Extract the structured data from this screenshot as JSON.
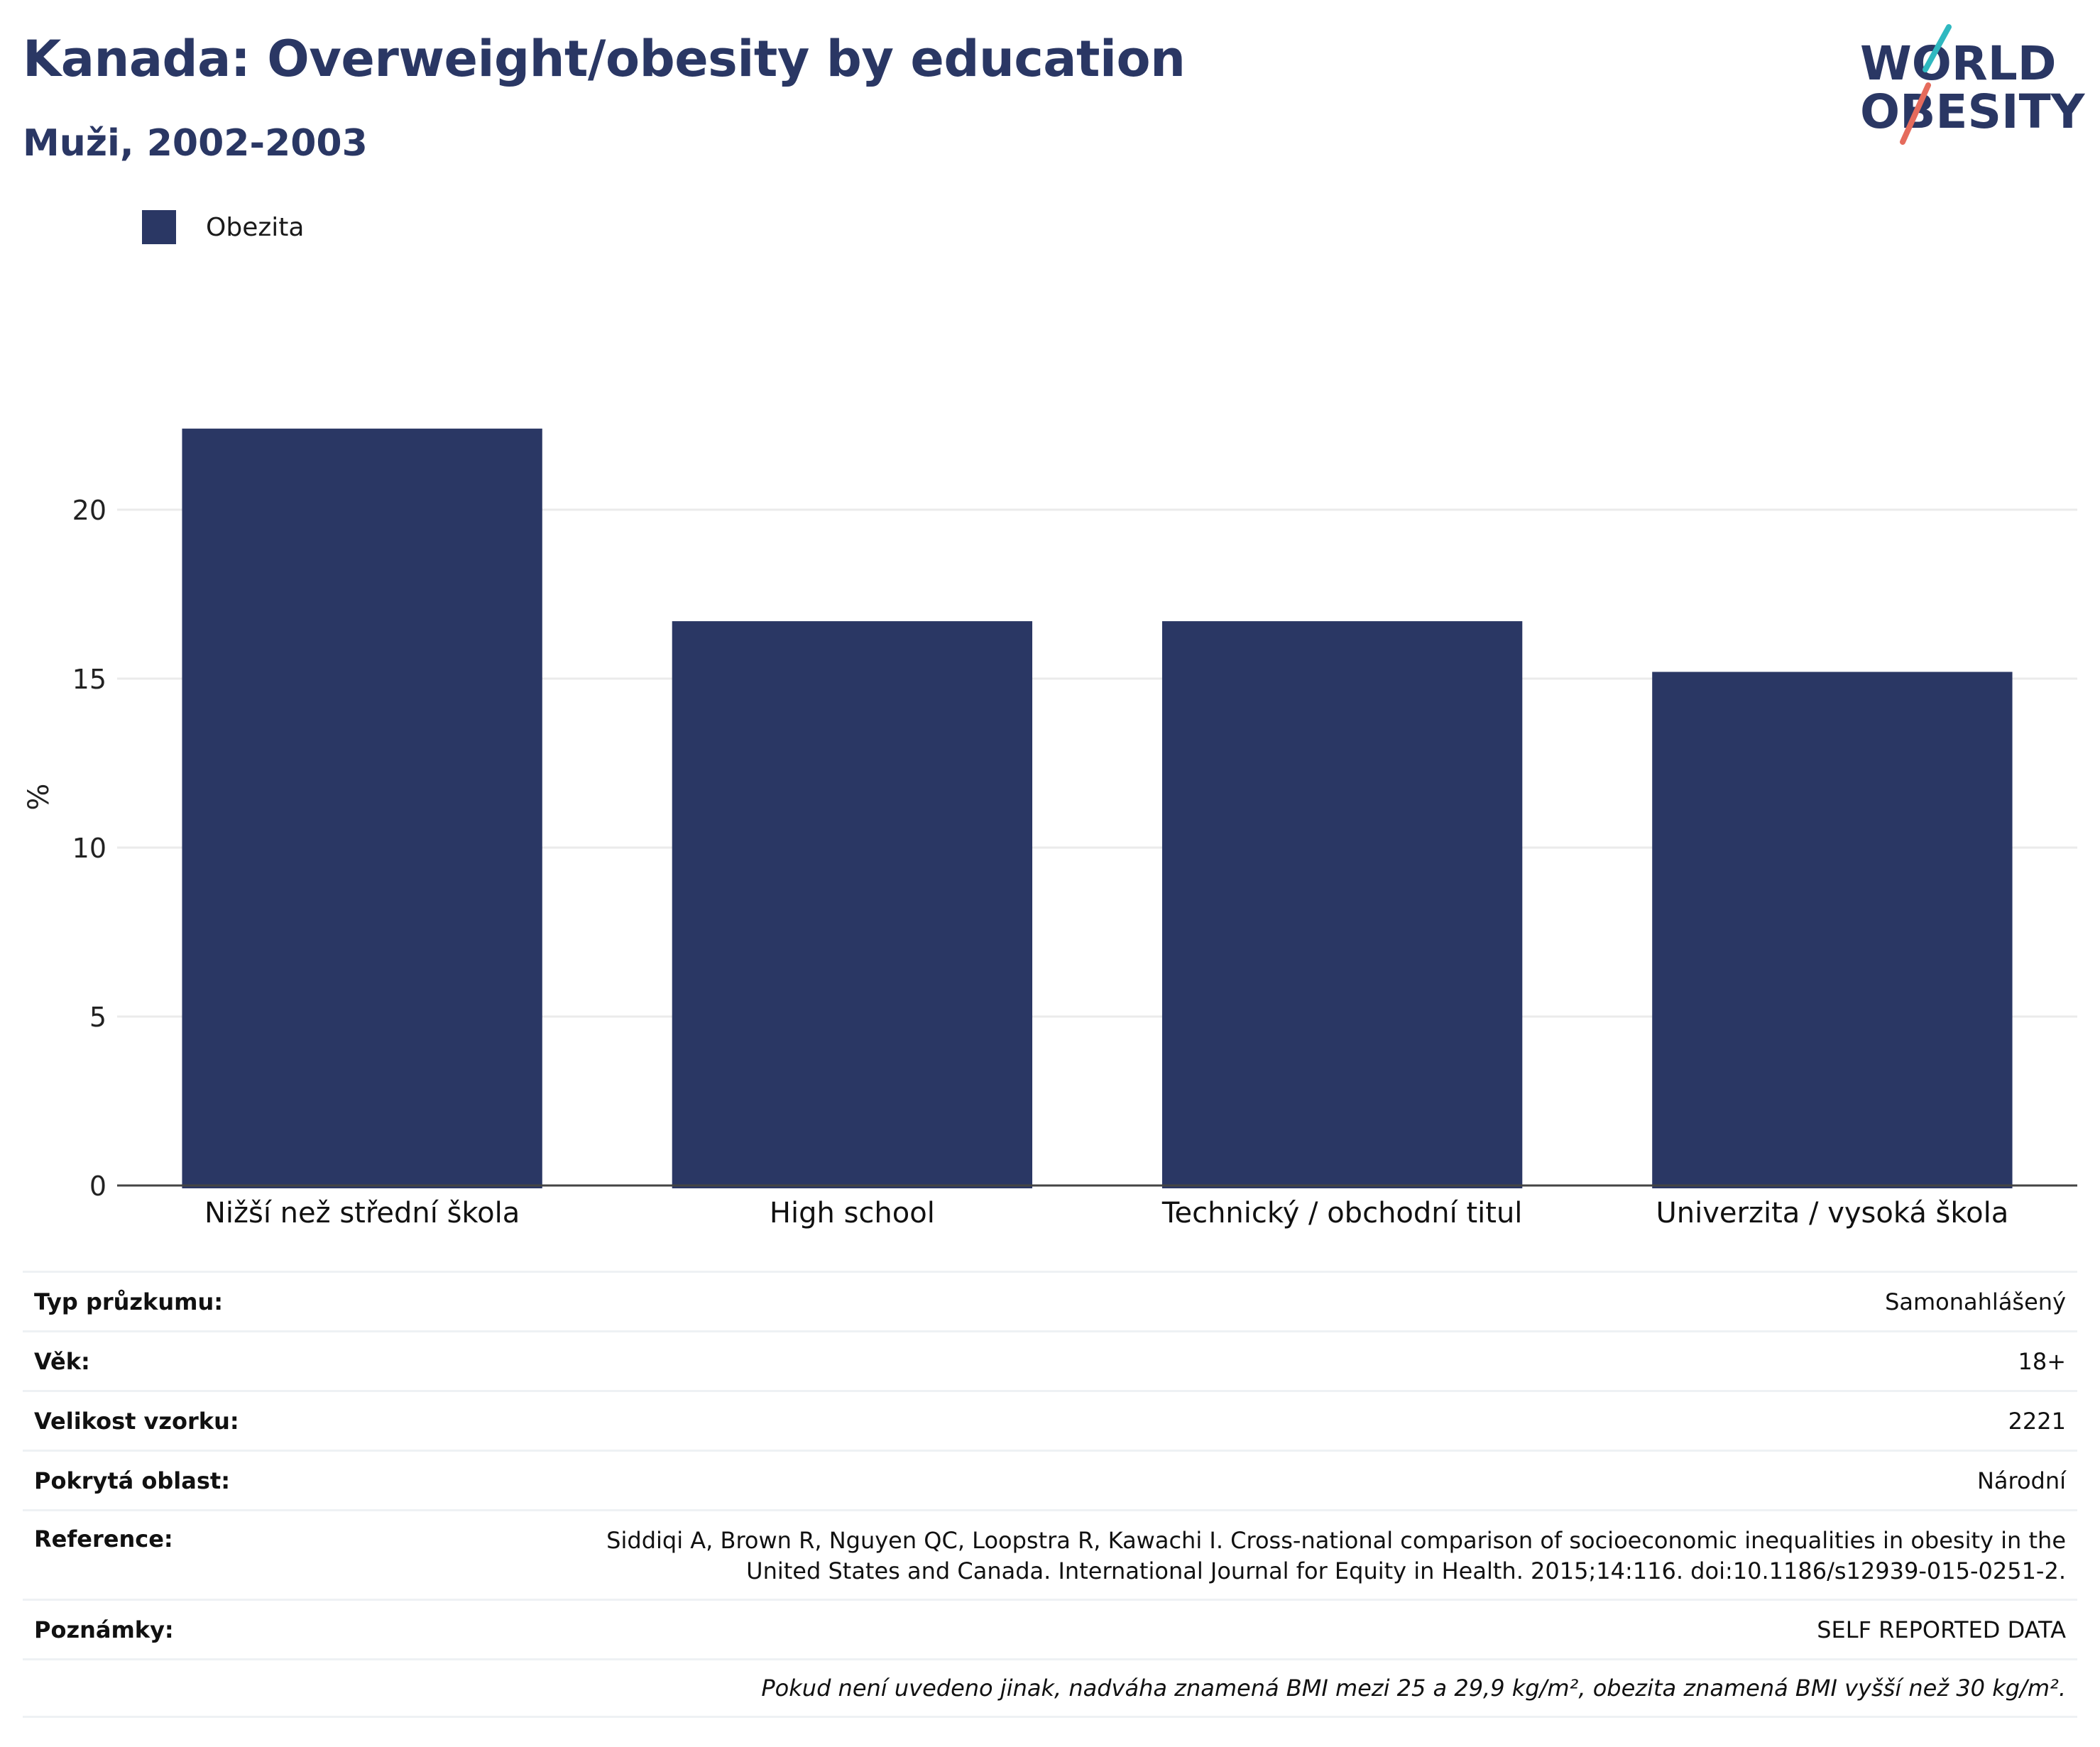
{
  "header": {
    "title": "Kanada: Overweight/obesity by education",
    "subtitle": "Muži, 2002-2003",
    "logo": {
      "line1": "WORLD",
      "line2": "OBESITY"
    }
  },
  "colors": {
    "bar": "#2a3764",
    "title": "#2a3764",
    "logo_teal": "#2fb8c0",
    "logo_coral": "#e56b5c",
    "grid": "#ebebeb"
  },
  "chart_data": {
    "type": "bar",
    "categories": [
      "Nižší než střední škola",
      "High school",
      "Technický / obchodní titul",
      "Univerzita / vysoká škola"
    ],
    "series": [
      {
        "name": "Obezita",
        "values": [
          22.4,
          16.7,
          16.7,
          15.2
        ]
      }
    ],
    "ylabel": "%",
    "ylim": [
      0,
      25
    ],
    "yticks": [
      0,
      5,
      10,
      15,
      20
    ],
    "grid": true,
    "legend_position": "top-left"
  },
  "info": {
    "rows": [
      {
        "label": "Typ průzkumu:",
        "value": "Samonahlášený"
      },
      {
        "label": "Věk:",
        "value": "18+"
      },
      {
        "label": "Velikost vzorku:",
        "value": "2221"
      },
      {
        "label": "Pokrytá oblast:",
        "value": "Národní"
      },
      {
        "label": "Reference:",
        "value": "Siddiqi A, Brown R, Nguyen QC, Loopstra R, Kawachi I. Cross-national comparison of socioeconomic inequalities in obesity in the United States and Canada. International Journal for Equity in Health. 2015;14:116. doi:10.1186/s12939-015-0251-2."
      },
      {
        "label": "Poznámky:",
        "value": "SELF REPORTED DATA"
      }
    ],
    "note": "Pokud není uvedeno jinak, nadváha znamená BMI mezi 25 a 29,9 kg/m², obezita znamená BMI vyšší než 30 kg/m²."
  }
}
